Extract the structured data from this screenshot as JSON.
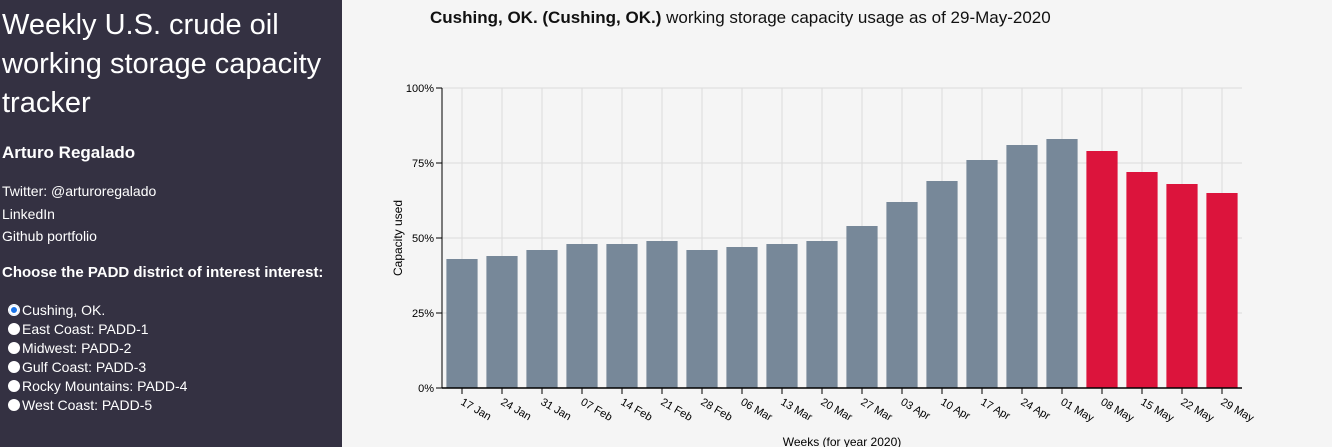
{
  "sidebar": {
    "title": "Weekly U.S. crude oil working storage capacity tracker",
    "author": "Arturo Regalado",
    "links": [
      "Twitter: @arturoregalado",
      "LinkedIn",
      "Github portfolio"
    ],
    "choose_label": "Choose the PADD district of interest interest:",
    "options": [
      "Cushing, OK.",
      "East Coast: PADD-1",
      "Midwest: PADD-2",
      "Gulf Coast: PADD-3",
      "Rocky Mountains: PADD-4",
      "West Coast: PADD-5"
    ],
    "selected_index": 0
  },
  "chart_header": {
    "bold_part": "Cushing, OK.  (Cushing, OK.)",
    "rest": " working storage capacity usage as of 29-May-2020"
  },
  "chart_data": {
    "type": "bar",
    "categories": [
      "17 Jan",
      "24 Jan",
      "31 Jan",
      "07 Feb",
      "14 Feb",
      "21 Feb",
      "28 Feb",
      "06 Mar",
      "13 Mar",
      "20 Mar",
      "27 Mar",
      "03 Apr",
      "10 Apr",
      "17 Apr",
      "24 Apr",
      "01 May",
      "08 May",
      "15 May",
      "22 May",
      "29 May"
    ],
    "values": [
      43,
      44,
      46,
      48,
      48,
      49,
      46,
      47,
      48,
      49,
      54,
      62,
      69,
      76,
      81,
      83,
      79,
      72,
      68,
      65
    ],
    "highlight_from_index": 16,
    "colors": {
      "default": "#778899",
      "highlight": "#dc143c"
    },
    "xlabel": "Weeks (for year 2020)",
    "ylabel": "Capacity used",
    "ylim": [
      0,
      100
    ],
    "yticks": [
      0,
      25,
      50,
      75,
      100
    ],
    "ytick_labels": [
      "0%",
      "25%",
      "50%",
      "75%",
      "100%"
    ],
    "grid": true
  }
}
